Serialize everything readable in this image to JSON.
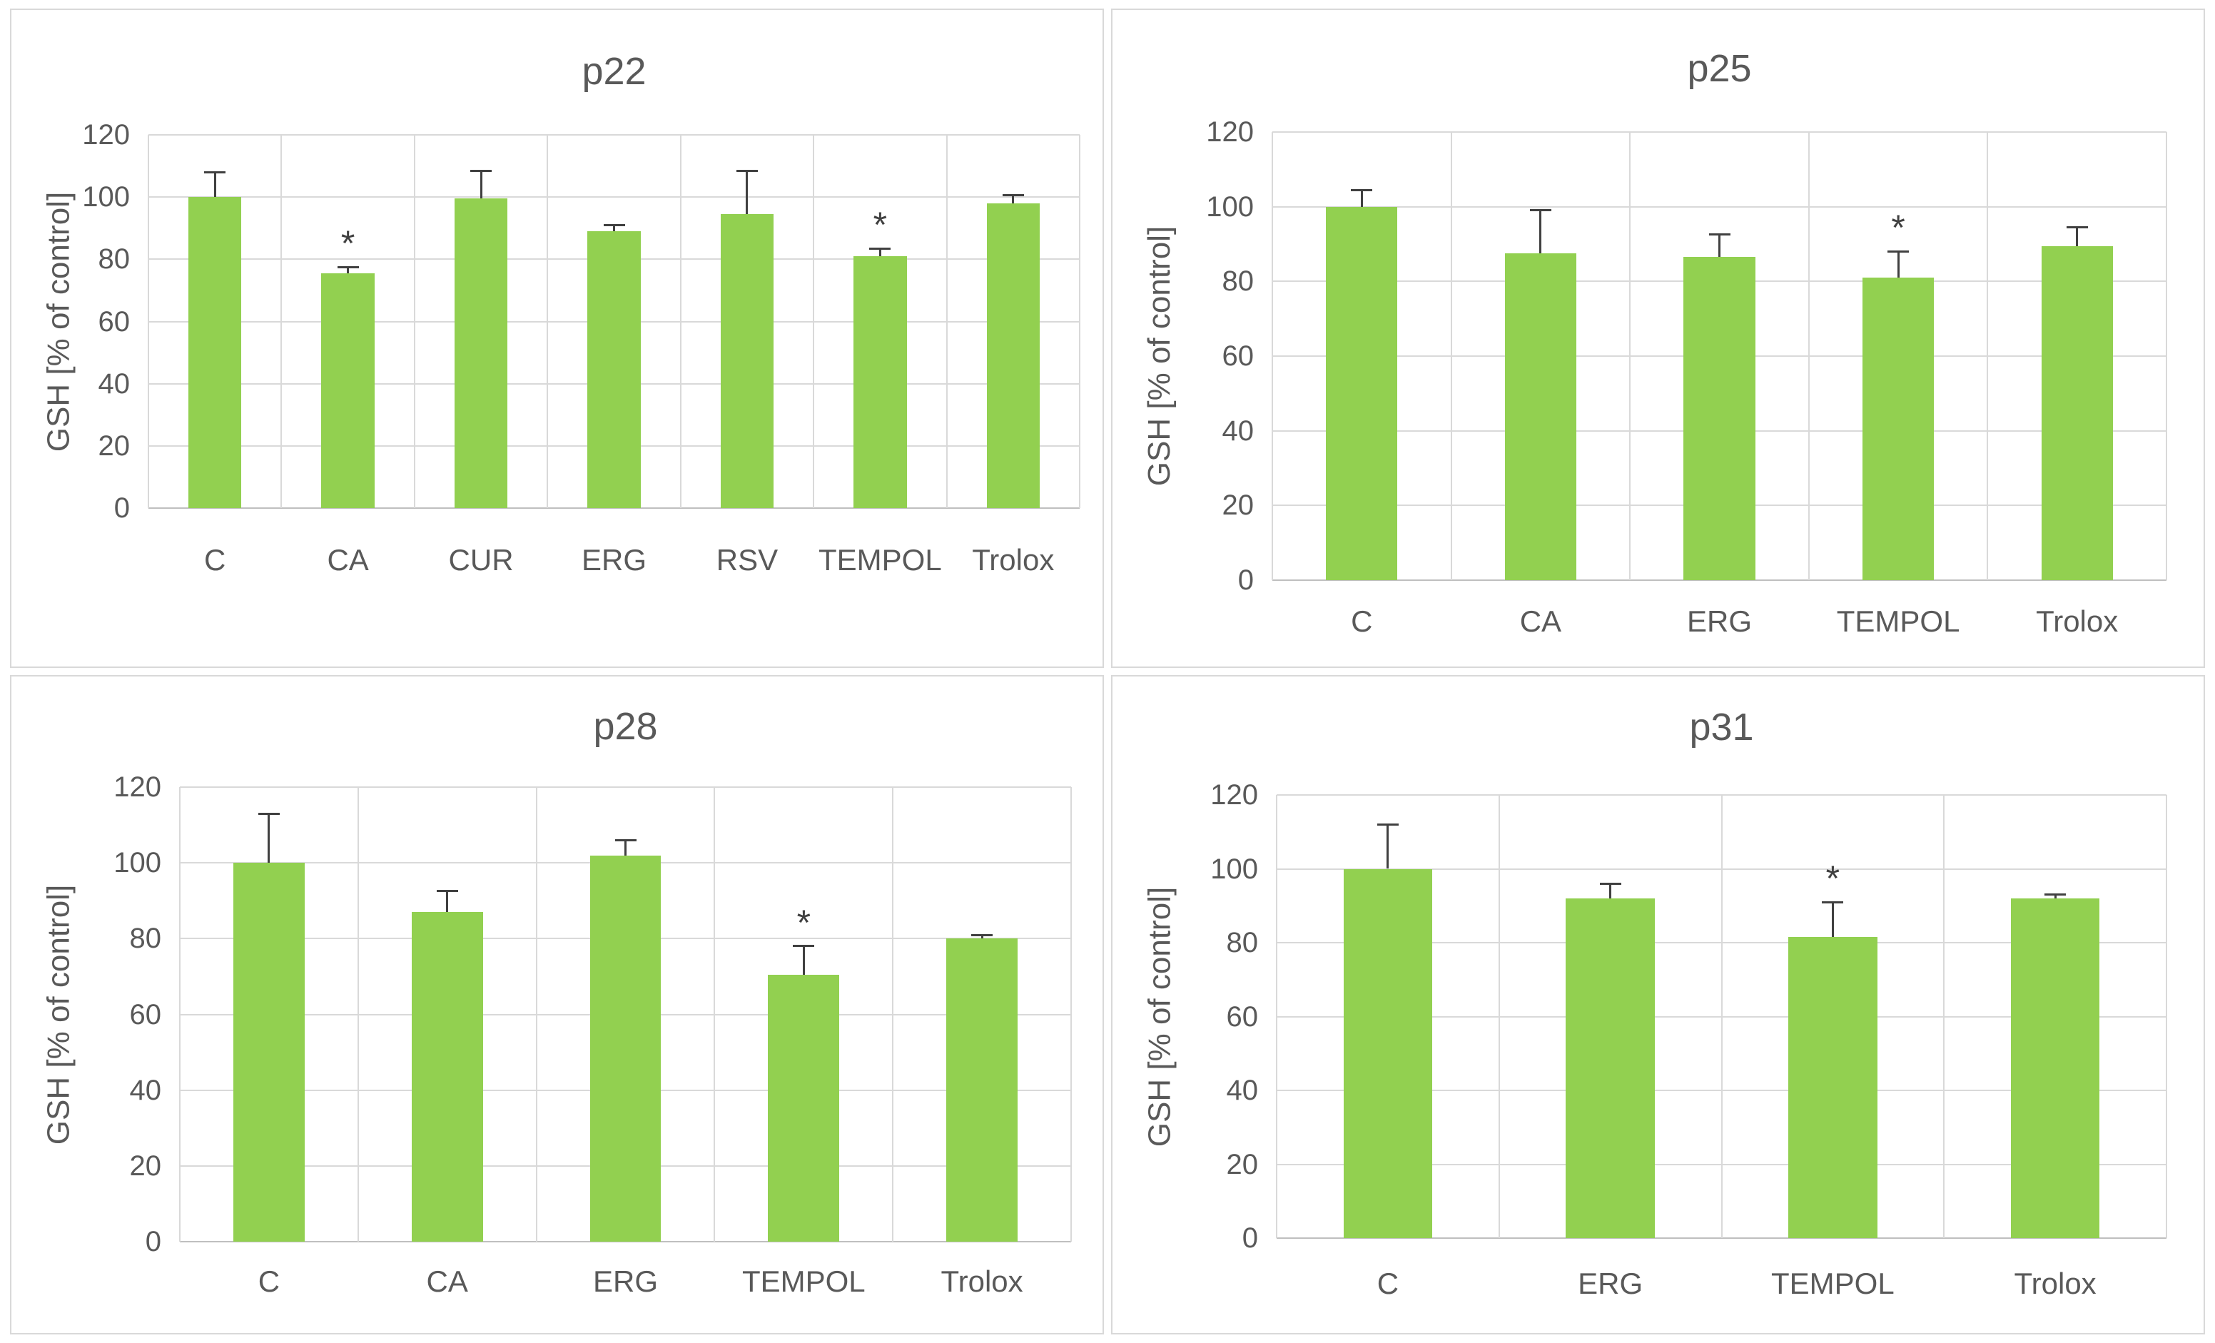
{
  "figure": {
    "description_visible_text_only": "Four bar charts of GSH percent of control",
    "background_color": "#ffffff"
  },
  "styles": {
    "bar_color": "#92d050",
    "grid_color": "#d9d9d9",
    "axis_line_color": "#bfbfbf",
    "panel_border_color": "#d9d9d9",
    "text_color": "#595959",
    "error_bar_color": "#404040",
    "significance_marker": "*"
  },
  "chart_data": [
    {
      "type": "bar",
      "title": "p22",
      "xlabel": "",
      "ylabel": "GSH [% of control]",
      "ylim": [
        0,
        120
      ],
      "yticks": [
        0,
        20,
        40,
        60,
        80,
        100,
        120
      ],
      "grid": true,
      "legend": "none",
      "categories": [
        "C",
        "CA",
        "CUR",
        "ERG",
        "RSV",
        "TEMPOL",
        "Trolox"
      ],
      "values": [
        100,
        75.5,
        99.5,
        89,
        94.5,
        81,
        98
      ],
      "errors_plus": [
        8,
        2,
        9,
        2,
        14,
        2.5,
        2.5
      ],
      "significant": [
        false,
        true,
        false,
        false,
        false,
        true,
        false
      ]
    },
    {
      "type": "bar",
      "title": "p25",
      "xlabel": "",
      "ylabel": "GSH [% of control]",
      "ylim": [
        0,
        120
      ],
      "yticks": [
        0,
        20,
        40,
        60,
        80,
        100,
        120
      ],
      "grid": true,
      "legend": "none",
      "categories": [
        "C",
        "CA",
        "ERG",
        "TEMPOL",
        "Trolox"
      ],
      "values": [
        100,
        87.5,
        86.5,
        81,
        89.5
      ],
      "errors_plus": [
        4.5,
        11.5,
        6,
        7,
        5
      ],
      "significant": [
        false,
        false,
        false,
        true,
        false
      ]
    },
    {
      "type": "bar",
      "title": "p28",
      "xlabel": "",
      "ylabel": "GSH [% of control]",
      "ylim": [
        0,
        120
      ],
      "yticks": [
        0,
        20,
        40,
        60,
        80,
        100,
        120
      ],
      "grid": true,
      "legend": "none",
      "categories": [
        "C",
        "CA",
        "ERG",
        "TEMPOL",
        "Trolox"
      ],
      "values": [
        100,
        87,
        102,
        70.5,
        80
      ],
      "errors_plus": [
        13,
        5.5,
        4,
        7.5,
        1
      ],
      "significant": [
        false,
        false,
        false,
        true,
        false
      ]
    },
    {
      "type": "bar",
      "title": "p31",
      "xlabel": "",
      "ylabel": "GSH [% of control]",
      "ylim": [
        0,
        120
      ],
      "yticks": [
        0,
        20,
        40,
        60,
        80,
        100,
        120
      ],
      "grid": true,
      "legend": "none",
      "categories": [
        "C",
        "ERG",
        "TEMPOL",
        "Trolox"
      ],
      "values": [
        100,
        92,
        81.5,
        92
      ],
      "errors_plus": [
        12,
        4,
        9.5,
        1
      ],
      "significant": [
        false,
        false,
        true,
        false
      ]
    }
  ]
}
